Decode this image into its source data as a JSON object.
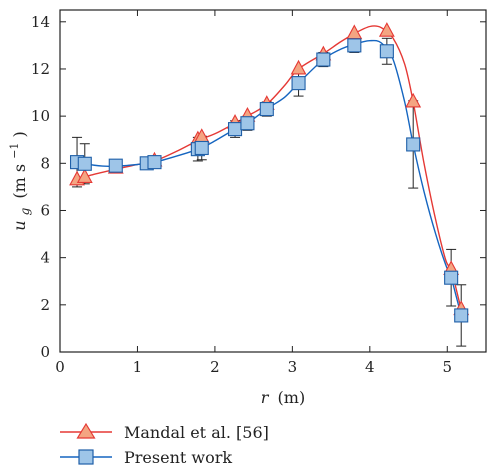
{
  "chart_data": {
    "type": "line",
    "xlabel_var": "r",
    "xlabel_unit": "(m)",
    "ylabel_var": "u",
    "ylabel_sub": "g",
    "ylabel_unit_pre": "(m s",
    "ylabel_unit_sup": "−1",
    "ylabel_unit_post": ")",
    "xlim": [
      0,
      5.5
    ],
    "ylim": [
      0,
      14.5
    ],
    "xticks": [
      "0",
      "1",
      "2",
      "3",
      "4",
      "5"
    ],
    "yticks": [
      "0",
      "2",
      "4",
      "6",
      "8",
      "10",
      "12",
      "14"
    ],
    "xtick_values": [
      0,
      1,
      2,
      3,
      4,
      5
    ],
    "ytick_values": [
      0,
      2,
      4,
      6,
      8,
      10,
      12,
      14
    ],
    "grid": false,
    "legend_position": "below-plot-left",
    "series": [
      {
        "name": "Mandal et al. [56]",
        "marker": "triangle",
        "line_color": "#e53935",
        "marker_fill": "#f4a582",
        "marker_stroke": "#e53935",
        "x": [
          0.22,
          0.32,
          0.72,
          1.22,
          1.78,
          1.83,
          2.26,
          2.42,
          2.67,
          3.08,
          3.4,
          3.8,
          4.22,
          4.56,
          5.05,
          5.18
        ],
        "y": [
          7.3,
          7.4,
          7.8,
          8.1,
          9.0,
          9.1,
          9.7,
          10.0,
          10.5,
          12.0,
          12.6,
          13.5,
          13.6,
          10.6,
          3.5,
          1.8
        ],
        "curve": [
          [
            0.22,
            7.3
          ],
          [
            0.4,
            7.5
          ],
          [
            0.72,
            7.75
          ],
          [
            1.0,
            7.95
          ],
          [
            1.22,
            8.1
          ],
          [
            1.5,
            8.5
          ],
          [
            1.8,
            9.0
          ],
          [
            2.0,
            9.25
          ],
          [
            2.26,
            9.7
          ],
          [
            2.42,
            10.0
          ],
          [
            2.67,
            10.5
          ],
          [
            2.9,
            11.3
          ],
          [
            3.08,
            12.0
          ],
          [
            3.4,
            12.65
          ],
          [
            3.6,
            13.1
          ],
          [
            3.8,
            13.5
          ],
          [
            4.0,
            13.8
          ],
          [
            4.15,
            13.75
          ],
          [
            4.3,
            13.3
          ],
          [
            4.45,
            12.2
          ],
          [
            4.56,
            10.6
          ],
          [
            4.7,
            8.0
          ],
          [
            4.85,
            5.6
          ],
          [
            4.98,
            3.9
          ],
          [
            5.05,
            3.5
          ],
          [
            5.12,
            2.6
          ],
          [
            5.18,
            1.8
          ]
        ]
      },
      {
        "name": "Present work",
        "marker": "square",
        "line_color": "#1565c0",
        "marker_fill": "#9ec5e8",
        "marker_stroke": "#1f5fa8",
        "x": [
          0.22,
          0.32,
          0.72,
          1.12,
          1.22,
          1.78,
          1.83,
          2.26,
          2.42,
          2.67,
          3.08,
          3.4,
          3.8,
          4.22,
          4.56,
          5.05,
          5.18
        ],
        "y": [
          8.05,
          7.98,
          7.9,
          8.0,
          8.05,
          8.6,
          8.65,
          9.45,
          9.7,
          10.3,
          11.4,
          12.4,
          13.0,
          12.75,
          8.8,
          3.15,
          1.55
        ],
        "err": [
          1.05,
          0.85,
          0.15,
          0.15,
          0.15,
          0.5,
          0.5,
          0.35,
          0.3,
          0.3,
          0.55,
          0.3,
          0.3,
          0.55,
          1.85,
          1.2,
          1.3
        ],
        "curve": [
          [
            0.22,
            8.05
          ],
          [
            0.32,
            7.98
          ],
          [
            0.55,
            7.88
          ],
          [
            0.72,
            7.88
          ],
          [
            1.0,
            7.95
          ],
          [
            1.22,
            8.05
          ],
          [
            1.5,
            8.3
          ],
          [
            1.8,
            8.62
          ],
          [
            2.0,
            8.95
          ],
          [
            2.26,
            9.45
          ],
          [
            2.42,
            9.7
          ],
          [
            2.67,
            10.3
          ],
          [
            2.9,
            10.8
          ],
          [
            3.08,
            11.4
          ],
          [
            3.4,
            12.4
          ],
          [
            3.6,
            12.8
          ],
          [
            3.8,
            13.05
          ],
          [
            4.0,
            13.2
          ],
          [
            4.15,
            13.1
          ],
          [
            4.3,
            12.4
          ],
          [
            4.45,
            10.6
          ],
          [
            4.56,
            8.8
          ],
          [
            4.7,
            6.8
          ],
          [
            4.85,
            5.0
          ],
          [
            4.98,
            3.7
          ],
          [
            5.05,
            3.15
          ],
          [
            5.12,
            2.3
          ],
          [
            5.18,
            1.55
          ]
        ]
      }
    ]
  }
}
